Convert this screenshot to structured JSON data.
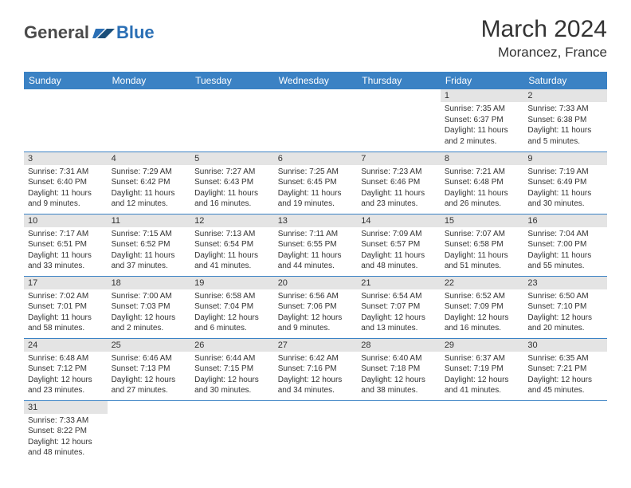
{
  "brand": {
    "part1": "General",
    "part2": "Blue"
  },
  "title": "March 2024",
  "location": "Morancez, France",
  "colors": {
    "header_bg": "#3b82c4",
    "daynum_bg": "#e4e4e4",
    "rule": "#3b82c4"
  },
  "weekdays": [
    "Sunday",
    "Monday",
    "Tuesday",
    "Wednesday",
    "Thursday",
    "Friday",
    "Saturday"
  ],
  "weeks": [
    [
      null,
      null,
      null,
      null,
      null,
      {
        "n": "1",
        "sr": "Sunrise: 7:35 AM",
        "ss": "Sunset: 6:37 PM",
        "dl": "Daylight: 11 hours and 2 minutes."
      },
      {
        "n": "2",
        "sr": "Sunrise: 7:33 AM",
        "ss": "Sunset: 6:38 PM",
        "dl": "Daylight: 11 hours and 5 minutes."
      }
    ],
    [
      {
        "n": "3",
        "sr": "Sunrise: 7:31 AM",
        "ss": "Sunset: 6:40 PM",
        "dl": "Daylight: 11 hours and 9 minutes."
      },
      {
        "n": "4",
        "sr": "Sunrise: 7:29 AM",
        "ss": "Sunset: 6:42 PM",
        "dl": "Daylight: 11 hours and 12 minutes."
      },
      {
        "n": "5",
        "sr": "Sunrise: 7:27 AM",
        "ss": "Sunset: 6:43 PM",
        "dl": "Daylight: 11 hours and 16 minutes."
      },
      {
        "n": "6",
        "sr": "Sunrise: 7:25 AM",
        "ss": "Sunset: 6:45 PM",
        "dl": "Daylight: 11 hours and 19 minutes."
      },
      {
        "n": "7",
        "sr": "Sunrise: 7:23 AM",
        "ss": "Sunset: 6:46 PM",
        "dl": "Daylight: 11 hours and 23 minutes."
      },
      {
        "n": "8",
        "sr": "Sunrise: 7:21 AM",
        "ss": "Sunset: 6:48 PM",
        "dl": "Daylight: 11 hours and 26 minutes."
      },
      {
        "n": "9",
        "sr": "Sunrise: 7:19 AM",
        "ss": "Sunset: 6:49 PM",
        "dl": "Daylight: 11 hours and 30 minutes."
      }
    ],
    [
      {
        "n": "10",
        "sr": "Sunrise: 7:17 AM",
        "ss": "Sunset: 6:51 PM",
        "dl": "Daylight: 11 hours and 33 minutes."
      },
      {
        "n": "11",
        "sr": "Sunrise: 7:15 AM",
        "ss": "Sunset: 6:52 PM",
        "dl": "Daylight: 11 hours and 37 minutes."
      },
      {
        "n": "12",
        "sr": "Sunrise: 7:13 AM",
        "ss": "Sunset: 6:54 PM",
        "dl": "Daylight: 11 hours and 41 minutes."
      },
      {
        "n": "13",
        "sr": "Sunrise: 7:11 AM",
        "ss": "Sunset: 6:55 PM",
        "dl": "Daylight: 11 hours and 44 minutes."
      },
      {
        "n": "14",
        "sr": "Sunrise: 7:09 AM",
        "ss": "Sunset: 6:57 PM",
        "dl": "Daylight: 11 hours and 48 minutes."
      },
      {
        "n": "15",
        "sr": "Sunrise: 7:07 AM",
        "ss": "Sunset: 6:58 PM",
        "dl": "Daylight: 11 hours and 51 minutes."
      },
      {
        "n": "16",
        "sr": "Sunrise: 7:04 AM",
        "ss": "Sunset: 7:00 PM",
        "dl": "Daylight: 11 hours and 55 minutes."
      }
    ],
    [
      {
        "n": "17",
        "sr": "Sunrise: 7:02 AM",
        "ss": "Sunset: 7:01 PM",
        "dl": "Daylight: 11 hours and 58 minutes."
      },
      {
        "n": "18",
        "sr": "Sunrise: 7:00 AM",
        "ss": "Sunset: 7:03 PM",
        "dl": "Daylight: 12 hours and 2 minutes."
      },
      {
        "n": "19",
        "sr": "Sunrise: 6:58 AM",
        "ss": "Sunset: 7:04 PM",
        "dl": "Daylight: 12 hours and 6 minutes."
      },
      {
        "n": "20",
        "sr": "Sunrise: 6:56 AM",
        "ss": "Sunset: 7:06 PM",
        "dl": "Daylight: 12 hours and 9 minutes."
      },
      {
        "n": "21",
        "sr": "Sunrise: 6:54 AM",
        "ss": "Sunset: 7:07 PM",
        "dl": "Daylight: 12 hours and 13 minutes."
      },
      {
        "n": "22",
        "sr": "Sunrise: 6:52 AM",
        "ss": "Sunset: 7:09 PM",
        "dl": "Daylight: 12 hours and 16 minutes."
      },
      {
        "n": "23",
        "sr": "Sunrise: 6:50 AM",
        "ss": "Sunset: 7:10 PM",
        "dl": "Daylight: 12 hours and 20 minutes."
      }
    ],
    [
      {
        "n": "24",
        "sr": "Sunrise: 6:48 AM",
        "ss": "Sunset: 7:12 PM",
        "dl": "Daylight: 12 hours and 23 minutes."
      },
      {
        "n": "25",
        "sr": "Sunrise: 6:46 AM",
        "ss": "Sunset: 7:13 PM",
        "dl": "Daylight: 12 hours and 27 minutes."
      },
      {
        "n": "26",
        "sr": "Sunrise: 6:44 AM",
        "ss": "Sunset: 7:15 PM",
        "dl": "Daylight: 12 hours and 30 minutes."
      },
      {
        "n": "27",
        "sr": "Sunrise: 6:42 AM",
        "ss": "Sunset: 7:16 PM",
        "dl": "Daylight: 12 hours and 34 minutes."
      },
      {
        "n": "28",
        "sr": "Sunrise: 6:40 AM",
        "ss": "Sunset: 7:18 PM",
        "dl": "Daylight: 12 hours and 38 minutes."
      },
      {
        "n": "29",
        "sr": "Sunrise: 6:37 AM",
        "ss": "Sunset: 7:19 PM",
        "dl": "Daylight: 12 hours and 41 minutes."
      },
      {
        "n": "30",
        "sr": "Sunrise: 6:35 AM",
        "ss": "Sunset: 7:21 PM",
        "dl": "Daylight: 12 hours and 45 minutes."
      }
    ],
    [
      {
        "n": "31",
        "sr": "Sunrise: 7:33 AM",
        "ss": "Sunset: 8:22 PM",
        "dl": "Daylight: 12 hours and 48 minutes."
      },
      null,
      null,
      null,
      null,
      null,
      null
    ]
  ]
}
